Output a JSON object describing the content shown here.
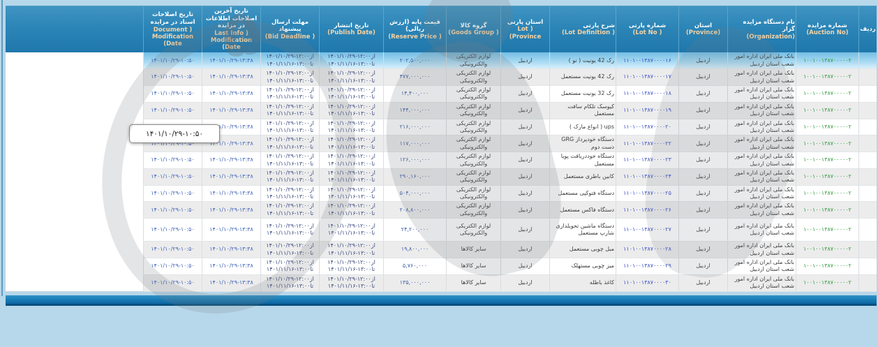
{
  "labels": {
    "from": "از",
    "to": "تا"
  },
  "tooltip": {
    "text": "۱۴۰۱/۱۰/۲۹-۱۰:۵۰"
  },
  "colors": {
    "page_bg": "#b7d7ea",
    "header_bg": "#2c85b7",
    "header_en_text": "#f6d3a4",
    "auction_no_green": "#2f9b3c",
    "lot_no_blue": "#3b50c8",
    "price_blue": "#3d5fa8",
    "selected_row_blue": "#a7d9f2",
    "pager_bar_blue": "#1678b2"
  },
  "header": {
    "columns": [
      {
        "fa": "ردیف",
        "en": ""
      },
      {
        "fa": "شماره مزایده",
        "en": "(Auction No)"
      },
      {
        "fa": "نام دستگاه مزایده گزار",
        "en": "(Organization)"
      },
      {
        "fa": "استان",
        "en": "(Province)"
      },
      {
        "fa": "شماره پارتی",
        "en": "( Lot No)"
      },
      {
        "fa": "شرح پارتی",
        "en": "( Lot Definition)"
      },
      {
        "fa": "استان پارتی",
        "en": "( Lot Province)"
      },
      {
        "fa": "گروه کالا",
        "en": "( Goods Group)"
      },
      {
        "fa": "قیمت پایه (ارزش ریالی)",
        "en": "( Reserve Price)"
      },
      {
        "fa": "تاریخ انتشار",
        "en": "(Publish Date)"
      },
      {
        "fa": "مهلت ارسال پیشنهاد",
        "en": "( Bid Deadline)"
      },
      {
        "fa": "تاریخ آخرین اصلاحات اطلاعات در مزایده",
        "en": "( Last Info Modification Date)"
      },
      {
        "fa": "تاریخ اصلاحات اسناد در مزایده",
        "en": "( Document Modification Date)"
      },
      {
        "fa": "",
        "en": ""
      }
    ]
  },
  "rows": [
    {
      "selected": true,
      "tall": false,
      "auction_no": "۱۰۰۱۰۰۱۳۸۷۰۰۰۰۰۲",
      "org": "بانک ملی ایران اداره امور شعب استان اردبیل",
      "province": "اردبیل",
      "lot_no": "۱۱۰۱۰۰۱۳۸۷۰۰۰۰۱۶",
      "definition": "رک 42 یونیت ( نو )",
      "lot_province": "اردبیل",
      "goods_group": "لوازم الکتریکی والکترونیکی",
      "price": "۲۰۲,۵۰۰,۰۰۰",
      "publish_from": "۱۴۰۱/۱۰/۲۹-۱۲:۰۰",
      "publish_to": "۱۴۰۱/۱۱/۱۶-۱۳:۰۰",
      "deadline_from": "۱۴۰۱/۱۰/۲۹-۱۲:۰۰",
      "deadline_to": "۱۴۰۱/۱۱/۱۶-۱۳:۰۰",
      "info_mod": "۱۴۰۱/۱۰/۲۹-۱۳:۳۸",
      "doc_mod": "۱۴۰۱/۱۰/۲۹-۱۰:۵۰"
    },
    {
      "selected": false,
      "tall": false,
      "auction_no": "۱۰۰۱۰۰۱۳۸۷۰۰۰۰۰۲",
      "org": "بانک ملی ایران اداره امور شعب استان اردبیل",
      "province": "اردبیل",
      "lot_no": "۱۱۰۱۰۰۱۳۸۷۰۰۰۰۱۷",
      "definition": "رک 42 یونیت مستعمل",
      "lot_province": "اردبیل",
      "goods_group": "لوازم الکتریکی والکترونیکی",
      "price": "۴۷۷,۰۰۰,۰۰۰",
      "publish_from": "۱۴۰۱/۱۰/۲۹-۱۲:۰۰",
      "publish_to": "۱۴۰۱/۱۱/۱۶-۱۳:۰۰",
      "deadline_from": "۱۴۰۱/۱۰/۲۹-۱۲:۰۰",
      "deadline_to": "۱۴۰۱/۱۱/۱۶-۱۳:۰۰",
      "info_mod": "۱۴۰۱/۱۰/۲۹-۱۳:۳۸",
      "doc_mod": "۱۴۰۱/۱۰/۲۹-۱۰:۵۰"
    },
    {
      "selected": false,
      "tall": false,
      "auction_no": "۱۰۰۱۰۰۱۳۸۷۰۰۰۰۰۲",
      "org": "بانک ملی ایران اداره امور شعب استان اردبیل",
      "province": "اردبیل",
      "lot_no": "۱۱۰۱۰۰۱۳۸۷۰۰۰۰۱۸",
      "definition": "رک 32 یونیت مستعمل",
      "lot_province": "اردبیل",
      "goods_group": "لوازم الکتریکی والکترونیکی",
      "price": "۱۴,۴۰۰,۰۰۰",
      "publish_from": "۱۴۰۱/۱۰/۲۹-۱۲:۰۰",
      "publish_to": "۱۴۰۱/۱۱/۱۶-۱۳:۰۰",
      "deadline_from": "۱۴۰۱/۱۰/۲۹-۱۲:۰۰",
      "deadline_to": "۱۴۰۱/۱۱/۱۶-۱۳:۰۰",
      "info_mod": "۱۴۰۱/۱۰/۲۹-۱۳:۳۸",
      "doc_mod": "۱۴۰۱/۱۰/۲۹-۱۰:۵۰"
    },
    {
      "selected": false,
      "tall": false,
      "auction_no": "۱۰۰۱۰۰۱۳۸۷۰۰۰۰۰۲",
      "org": "بانک ملی ایران اداره امور شعب استان اردبیل",
      "province": "اردبیل",
      "lot_no": "۱۱۰۱۰۰۱۳۸۷۰۰۰۰۱۹",
      "definition": "کیوسک تلکام سافت مستعمل",
      "lot_province": "اردبیل",
      "goods_group": "لوازم الکتریکی والکترونیکی",
      "price": "۱۴۴,۰۰۰,۰۰۰",
      "publish_from": "۱۴۰۱/۱۰/۲۹-۱۲:۰۰",
      "publish_to": "۱۴۰۱/۱۱/۱۶-۱۳:۰۰",
      "deadline_from": "۱۴۰۱/۱۰/۲۹-۱۲:۰۰",
      "deadline_to": "۱۴۰۱/۱۱/۱۶-۱۳:۰۰",
      "info_mod": "۱۴۰۱/۱۰/۲۹-۱۳:۳۸",
      "doc_mod": "۱۴۰۱/۱۰/۲۹-۱۰:۵۰"
    },
    {
      "selected": false,
      "tall": false,
      "auction_no": "۱۰۰۱۰۰۱۳۸۷۰۰۰۰۰۲",
      "org": "بانک ملی ایران اداره امور شعب استان اردبیل",
      "province": "اردبیل",
      "lot_no": "۱۱۰۱۰۰۱۳۸۷۰۰۰۰۲۰",
      "definition": "ups ( انواع مارک )",
      "lot_province": "اردبیل",
      "goods_group": "لوازم الکتریکی والکترونیکی",
      "price": "۲۱۶,۰۰۰,۰۰۰",
      "publish_from": "۱۴۰۱/۱۰/۲۹-۱۲:۰۰",
      "publish_to": "۱۴۰۱/۱۱/۱۶-۱۳:۰۰",
      "deadline_from": "۱۴۰۱/۱۰/۲۹-۱۲:۰۰",
      "deadline_to": "۱۴۰۱/۱۱/۱۶-۱۳:۰۰",
      "info_mod": "۱۴۰۱/۱۰/۲۹-۱۳:۳۸",
      "doc_mod": "۱۴۰۱/۱۰/۲۹-۱۰:۵۰"
    },
    {
      "selected": false,
      "tall": false,
      "auction_no": "۱۰۰۱۰۰۱۳۸۷۰۰۰۰۰۲",
      "org": "بانک ملی ایران اداره امور شعب استان اردبیل",
      "province": "اردبیل",
      "lot_no": "۱۱۰۱۰۰۱۳۸۷۰۰۰۰۲۲",
      "definition": "دستگاه خودپرداز GRG دست دوم",
      "lot_province": "اردبیل",
      "goods_group": "لوازم الکتریکی والکترونیکی",
      "price": "۱۱۷,۰۰۰,۰۰۰",
      "publish_from": "۱۴۰۱/۱۰/۲۹-۱۲:۰۰",
      "publish_to": "۱۴۰۱/۱۱/۱۶-۱۳:۰۰",
      "deadline_from": "۱۴۰۱/۱۰/۲۹-۱۲:۰۰",
      "deadline_to": "۱۴۰۱/۱۱/۱۶-۱۳:۰۰",
      "info_mod": "۱۴۰۱/۱۰/۲۹-۱۳:۳۸",
      "doc_mod": "۱۴۰۱/۱۰/۲۹-۱۰:۵۰"
    },
    {
      "selected": false,
      "tall": false,
      "auction_no": "۱۰۰۱۰۰۱۳۸۷۰۰۰۰۰۲",
      "org": "بانک ملی ایران اداره امور شعب استان اردبیل",
      "province": "اردبیل",
      "lot_no": "۱۱۰۱۰۰۱۳۸۷۰۰۰۰۲۳",
      "definition": "دستگاه خوددریافت پویا مستعمل",
      "lot_province": "اردبیل",
      "goods_group": "لوازم الکتریکی والکترونیکی",
      "price": "۱۲۶,۰۰۰,۰۰۰",
      "publish_from": "۱۴۰۱/۱۰/۲۹-۱۲:۰۰",
      "publish_to": "۱۴۰۱/۱۱/۱۶-۱۳:۰۰",
      "deadline_from": "۱۴۰۱/۱۰/۲۹-۱۲:۰۰",
      "deadline_to": "۱۴۰۱/۱۱/۱۶-۱۳:۰۰",
      "info_mod": "۱۴۰۱/۱۰/۲۹-۱۳:۳۸",
      "doc_mod": "۱۴۰۱/۱۰/۲۹-۱۰:۵۰"
    },
    {
      "selected": false,
      "tall": false,
      "auction_no": "۱۰۰۱۰۰۱۳۸۷۰۰۰۰۰۲",
      "org": "بانک ملی ایران اداره امور شعب استان اردبیل",
      "province": "اردبیل",
      "lot_no": "۱۱۰۱۰۰۱۳۸۷۰۰۰۰۲۴",
      "definition": "کابین باطری مستعمل",
      "lot_province": "اردبیل",
      "goods_group": "لوازم الکتریکی والکترونیکی",
      "price": "۲۹۰,۱۶۰,۰۰۰",
      "publish_from": "۱۴۰۱/۱۰/۲۹-۱۲:۰۰",
      "publish_to": "۱۴۰۱/۱۱/۱۶-۱۳:۰۰",
      "deadline_from": "۱۴۰۱/۱۰/۲۹-۱۲:۰۰",
      "deadline_to": "۱۴۰۱/۱۱/۱۶-۱۳:۰۰",
      "info_mod": "۱۴۰۱/۱۰/۲۹-۱۳:۳۸",
      "doc_mod": "۱۴۰۱/۱۰/۲۹-۱۰:۵۰"
    },
    {
      "selected": false,
      "tall": false,
      "auction_no": "۱۰۰۱۰۰۱۳۸۷۰۰۰۰۰۲",
      "org": "بانک ملی ایران اداره امور شعب استان اردبیل",
      "province": "اردبیل",
      "lot_no": "۱۱۰۱۰۰۱۳۸۷۰۰۰۰۲۵",
      "definition": "دستگاه فتوکپی مستعمل",
      "lot_province": "اردبیل",
      "goods_group": "لوازم الکتریکی والکترونیکی",
      "price": "۵۰۴,۰۰۰,۰۰۰",
      "publish_from": "۱۴۰۱/۱۰/۲۹-۱۲:۰۰",
      "publish_to": "۱۴۰۱/۱۱/۱۶-۱۳:۰۰",
      "deadline_from": "۱۴۰۱/۱۰/۲۹-۱۲:۰۰",
      "deadline_to": "۱۴۰۱/۱۱/۱۶-۱۳:۰۰",
      "info_mod": "۱۴۰۱/۱۰/۲۹-۱۳:۳۸",
      "doc_mod": "۱۴۰۱/۱۰/۲۹-۱۰:۵۰"
    },
    {
      "selected": false,
      "tall": false,
      "auction_no": "۱۰۰۱۰۰۱۳۸۷۰۰۰۰۰۲",
      "org": "بانک ملی ایران اداره امور شعب استان اردبیل",
      "province": "اردبیل",
      "lot_no": "۱۱۰۱۰۰۱۳۸۷۰۰۰۰۲۶",
      "definition": "دستگاه فاکس مستعمل",
      "lot_province": "اردبیل",
      "goods_group": "لوازم الکتریکی والکترونیکی",
      "price": "۲۰۸,۸۰۰,۰۰۰",
      "publish_from": "۱۴۰۱/۱۰/۲۹-۱۲:۰۰",
      "publish_to": "۱۴۰۱/۱۱/۱۶-۱۳:۰۰",
      "deadline_from": "۱۴۰۱/۱۰/۲۹-۱۲:۰۰",
      "deadline_to": "۱۴۰۱/۱۱/۱۶-۱۳:۰۰",
      "info_mod": "۱۴۰۱/۱۰/۲۹-۱۳:۳۸",
      "doc_mod": "۱۴۰۱/۱۰/۲۹-۱۰:۵۰"
    },
    {
      "selected": false,
      "tall": true,
      "auction_no": "۱۰۰۱۰۰۱۳۸۷۰۰۰۰۰۲",
      "org": "بانک ملی ایران اداره امور شعب استان اردبیل",
      "province": "اردبیل",
      "lot_no": "۱۱۰۱۰۰۱۳۸۷۰۰۰۰۲۷",
      "definition": "دستگاه ماشین تحویلداری شارپ مستعمل",
      "lot_province": "اردبیل",
      "goods_group": "لوازم الکتریکی والکترونیکی",
      "price": "۲۴,۲۰۰,۰۰۰",
      "publish_from": "۱۴۰۱/۱۰/۲۹-۱۲:۰۰",
      "publish_to": "۱۴۰۱/۱۱/۱۶-۱۳:۰۰",
      "deadline_from": "۱۴۰۱/۱۰/۲۹-۱۲:۰۰",
      "deadline_to": "۱۴۰۱/۱۱/۱۶-۱۳:۰۰",
      "info_mod": "۱۴۰۱/۱۰/۲۹-۱۳:۳۸",
      "doc_mod": "۱۴۰۱/۱۰/۲۹-۱۰:۵۰"
    },
    {
      "selected": false,
      "tall": false,
      "auction_no": "۱۰۰۱۰۰۱۳۸۷۰۰۰۰۰۲",
      "org": "بانک ملی ایران اداره امور شعب استان اردبیل",
      "province": "اردبیل",
      "lot_no": "۱۱۰۱۰۰۱۳۸۷۰۰۰۰۲۸",
      "definition": "مبل چوبی مستعمل",
      "lot_province": "اردبیل",
      "goods_group": "سایر کالاها",
      "price": "۱۹,۸۰۰,۰۰۰",
      "publish_from": "۱۴۰۱/۱۰/۲۹-۱۲:۰۰",
      "publish_to": "۱۴۰۱/۱۱/۱۶-۱۳:۰۰",
      "deadline_from": "۱۴۰۱/۱۰/۲۹-۱۲:۰۰",
      "deadline_to": "۱۴۰۱/۱۱/۱۶-۱۳:۰۰",
      "info_mod": "۱۴۰۱/۱۰/۲۹-۱۳:۳۸",
      "doc_mod": "۱۴۰۱/۱۰/۲۹-۱۰:۵۰"
    },
    {
      "selected": false,
      "tall": false,
      "auction_no": "۱۰۰۱۰۰۱۳۸۷۰۰۰۰۰۲",
      "org": "بانک ملی ایران اداره امور شعب استان اردبیل",
      "province": "اردبیل",
      "lot_no": "۱۱۰۱۰۰۱۳۸۷۰۰۰۰۲۹",
      "definition": "میز چوبی مستهلک",
      "lot_province": "اردبیل",
      "goods_group": "سایر کالاها",
      "price": "۵,۷۶۰,۰۰۰",
      "publish_from": "۱۴۰۱/۱۰/۲۹-۱۲:۰۰",
      "publish_to": "۱۴۰۱/۱۱/۱۶-۱۳:۰۰",
      "deadline_from": "۱۴۰۱/۱۰/۲۹-۱۲:۰۰",
      "deadline_to": "۱۴۰۱/۱۱/۱۶-۱۳:۰۰",
      "info_mod": "۱۴۰۱/۱۰/۲۹-۱۳:۳۸",
      "doc_mod": "۱۴۰۱/۱۰/۲۹-۱۰:۵۰"
    },
    {
      "selected": false,
      "tall": false,
      "auction_no": "۱۰۰۱۰۰۱۳۸۷۰۰۰۰۰۲",
      "org": "بانک ملی ایران اداره امور شعب استان اردبیل",
      "province": "اردبیل",
      "lot_no": "۱۱۰۱۰۰۱۳۸۷۰۰۰۰۳۰",
      "definition": "کاغذ باطله",
      "lot_province": "اردبیل",
      "goods_group": "سایر کالاها",
      "price": "۱۳۵,۰۰۰,۰۰۰",
      "publish_from": "۱۴۰۱/۱۰/۲۹-۱۲:۰۰",
      "publish_to": "۱۴۰۱/۱۱/۱۶-۱۳:۰۰",
      "deadline_from": "۱۴۰۱/۱۰/۲۹-۱۲:۰۰",
      "deadline_to": "۱۴۰۱/۱۱/۱۶-۱۳:۰۰",
      "info_mod": "۱۴۰۱/۱۰/۲۹-۱۳:۳۸",
      "doc_mod": "۱۴۰۱/۱۰/۲۹-۱۰:۵۰"
    }
  ]
}
